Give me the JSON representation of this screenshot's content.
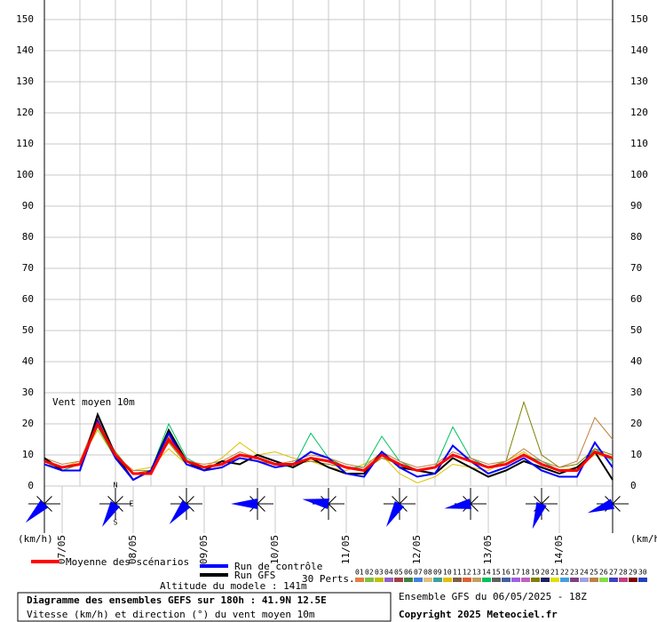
{
  "chart_data": {
    "type": "line",
    "annotation": "Vent moyen 10m",
    "unit_left": "(km/h)",
    "unit_right": "(km/h)",
    "categories": [
      null,
      "07/05",
      null,
      null,
      null,
      "08/05",
      null,
      null,
      null,
      "09/05",
      null,
      null,
      null,
      "10/05",
      null,
      null,
      null,
      "11/05",
      null,
      null,
      null,
      "12/05",
      null,
      null,
      null,
      "13/05",
      null,
      null,
      null,
      "14/05",
      null,
      null,
      null
    ],
    "ylim": [
      0,
      150
    ],
    "yticks": [
      0,
      10,
      20,
      30,
      40,
      50,
      60,
      70,
      80,
      90,
      100,
      110,
      120,
      130,
      140,
      150
    ],
    "grid": true,
    "series": [
      {
        "name": "Moyenne des scénarios",
        "color": "#ff0000",
        "values": [
          8,
          6,
          7,
          20,
          10,
          4,
          4,
          15,
          8,
          6,
          7,
          10,
          9,
          7,
          7,
          9,
          8,
          6,
          5,
          10,
          7,
          5,
          6,
          10,
          8,
          6,
          7,
          10,
          7,
          5,
          5,
          11,
          9
        ]
      },
      {
        "name": "Run de contrôle",
        "color": "#0000ff",
        "values": [
          7,
          5,
          5,
          21,
          9,
          2,
          5,
          17,
          7,
          5,
          6,
          9,
          8,
          6,
          7,
          11,
          9,
          4,
          3,
          11,
          6,
          3,
          4,
          13,
          8,
          4,
          6,
          9,
          5,
          3,
          3,
          14,
          6
        ]
      },
      {
        "name": "Run GFS",
        "color": "#000000",
        "values": [
          9,
          5,
          5,
          23,
          10,
          2,
          5,
          18,
          8,
          5,
          8,
          7,
          10,
          8,
          6,
          9,
          6,
          4,
          4,
          11,
          6,
          5,
          4,
          9,
          6,
          3,
          5,
          8,
          6,
          4,
          6,
          11,
          2
        ]
      }
    ],
    "perturbations_label": "30 Perts.",
    "perturbations": [
      {
        "name": "01",
        "color": "#e08040"
      },
      {
        "name": "02",
        "color": "#80c040"
      },
      {
        "name": "03",
        "color": "#c0c000"
      },
      {
        "name": "04",
        "color": "#9060c0"
      },
      {
        "name": "05",
        "color": "#a04040"
      },
      {
        "name": "06",
        "color": "#408040"
      },
      {
        "name": "07",
        "color": "#4080e0"
      },
      {
        "name": "08",
        "color": "#e0c080"
      },
      {
        "name": "09",
        "color": "#40a0a0"
      },
      {
        "name": "10",
        "color": "#e0c000",
        "values": [
          7,
          6,
          8,
          18,
          9,
          5,
          6,
          12,
          7,
          6,
          9,
          14,
          10,
          11,
          9,
          8,
          6,
          5,
          7,
          10,
          4,
          1,
          3,
          7,
          6,
          5,
          8,
          11,
          7,
          5,
          6,
          10,
          9
        ]
      },
      {
        "name": "11",
        "color": "#806040"
      },
      {
        "name": "12",
        "color": "#e06030"
      },
      {
        "name": "13",
        "color": "#c0a060"
      },
      {
        "name": "14",
        "color": "#00c060",
        "values": [
          8,
          5,
          7,
          19,
          9,
          4,
          5,
          20,
          9,
          6,
          7,
          10,
          9,
          7,
          6,
          17,
          9,
          6,
          6,
          16,
          8,
          5,
          6,
          19,
          9,
          6,
          7,
          10,
          8,
          5,
          5,
          12,
          8
        ]
      },
      {
        "name": "15",
        "color": "#606060"
      },
      {
        "name": "16",
        "color": "#4060a0"
      },
      {
        "name": "17",
        "color": "#a060e0"
      },
      {
        "name": "18",
        "color": "#c060c0"
      },
      {
        "name": "19",
        "color": "#808000",
        "values": [
          8,
          6,
          7,
          20,
          11,
          4,
          5,
          14,
          7,
          6,
          7,
          9,
          8,
          7,
          7,
          8,
          7,
          6,
          5,
          9,
          7,
          5,
          6,
          10,
          8,
          6,
          8,
          27,
          10,
          6,
          7,
          12,
          10
        ]
      },
      {
        "name": "20",
        "color": "#202060"
      },
      {
        "name": "21",
        "color": "#e0e000"
      },
      {
        "name": "22",
        "color": "#40a0e0"
      },
      {
        "name": "23",
        "color": "#804080"
      },
      {
        "name": "24",
        "color": "#a0a0e0"
      },
      {
        "name": "25",
        "color": "#c08040",
        "values": [
          9,
          7,
          8,
          22,
          10,
          5,
          5,
          16,
          8,
          7,
          8,
          11,
          9,
          7,
          8,
          10,
          9,
          7,
          6,
          11,
          8,
          6,
          7,
          11,
          9,
          7,
          8,
          12,
          8,
          6,
          8,
          22,
          15
        ]
      },
      {
        "name": "26",
        "color": "#80e040"
      },
      {
        "name": "27",
        "color": "#4040c0"
      },
      {
        "name": "28",
        "color": "#c04080"
      },
      {
        "name": "29",
        "color": "#800000"
      },
      {
        "name": "30",
        "color": "#2040c0"
      }
    ],
    "wind_direction": [
      45,
      30,
      40,
      90,
      100,
      30,
      80,
      20,
      70
    ],
    "compass": [
      "N",
      "E",
      "S"
    ],
    "altitude": "Altitude du modele : 141m",
    "run_info": "Ensemble GFS du 06/05/2025 - 18Z",
    "title": "Diagramme des ensembles GEFS sur 180h : 41.9N 12.5E",
    "subtitle": "Vitesse (km/h) et direction (°) du vent moyen 10m",
    "copyright": "Copyright 2025 Meteociel.fr"
  }
}
